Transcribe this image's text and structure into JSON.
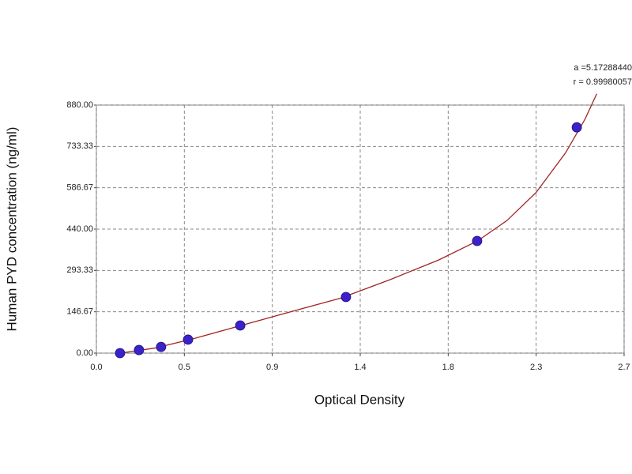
{
  "chart_data": {
    "type": "scatter",
    "xlabel": "Optical Density",
    "ylabel": "Human PYD concentration (ng/ml)",
    "annotations": [
      "a =5.17288440",
      "r = 0.99980057"
    ],
    "points": {
      "x": [
        0.121,
        0.218,
        0.331,
        0.469,
        0.736,
        1.277,
        1.948,
        2.458
      ],
      "y": [
        0,
        11,
        22,
        48,
        98,
        199,
        398,
        801
      ]
    },
    "curve": {
      "x": [
        0.121,
        0.3,
        0.5,
        0.75,
        1.0,
        1.25,
        1.5,
        1.75,
        1.95,
        2.1,
        2.25,
        2.4,
        2.5,
        2.56
      ],
      "y": [
        0,
        18,
        52,
        100,
        148,
        195,
        260,
        330,
        398,
        470,
        570,
        710,
        830,
        920
      ]
    },
    "point_color": "#3a22c8",
    "curve_color": "#a02424",
    "xlim": [
      0,
      2.7
    ],
    "ylim": [
      0,
      880
    ],
    "xticks": [
      {
        "value": 0,
        "label": "0.0"
      },
      {
        "value": 0.45,
        "label": "0.5"
      },
      {
        "value": 0.9,
        "label": "0.9"
      },
      {
        "value": 1.35,
        "label": "1.4"
      },
      {
        "value": 1.8,
        "label": "1.8"
      },
      {
        "value": 2.25,
        "label": "2.3"
      },
      {
        "value": 2.7,
        "label": "2.7"
      }
    ],
    "yticks": [
      {
        "value": 0,
        "label": "0.00"
      },
      {
        "value": 146.67,
        "label": "146.67"
      },
      {
        "value": 293.33,
        "label": "293.33"
      },
      {
        "value": 440,
        "label": "440.00"
      },
      {
        "value": 586.67,
        "label": "586.67"
      },
      {
        "value": 733.33,
        "label": "733.33"
      },
      {
        "value": 880,
        "label": "880.00"
      }
    ],
    "grid": true
  }
}
